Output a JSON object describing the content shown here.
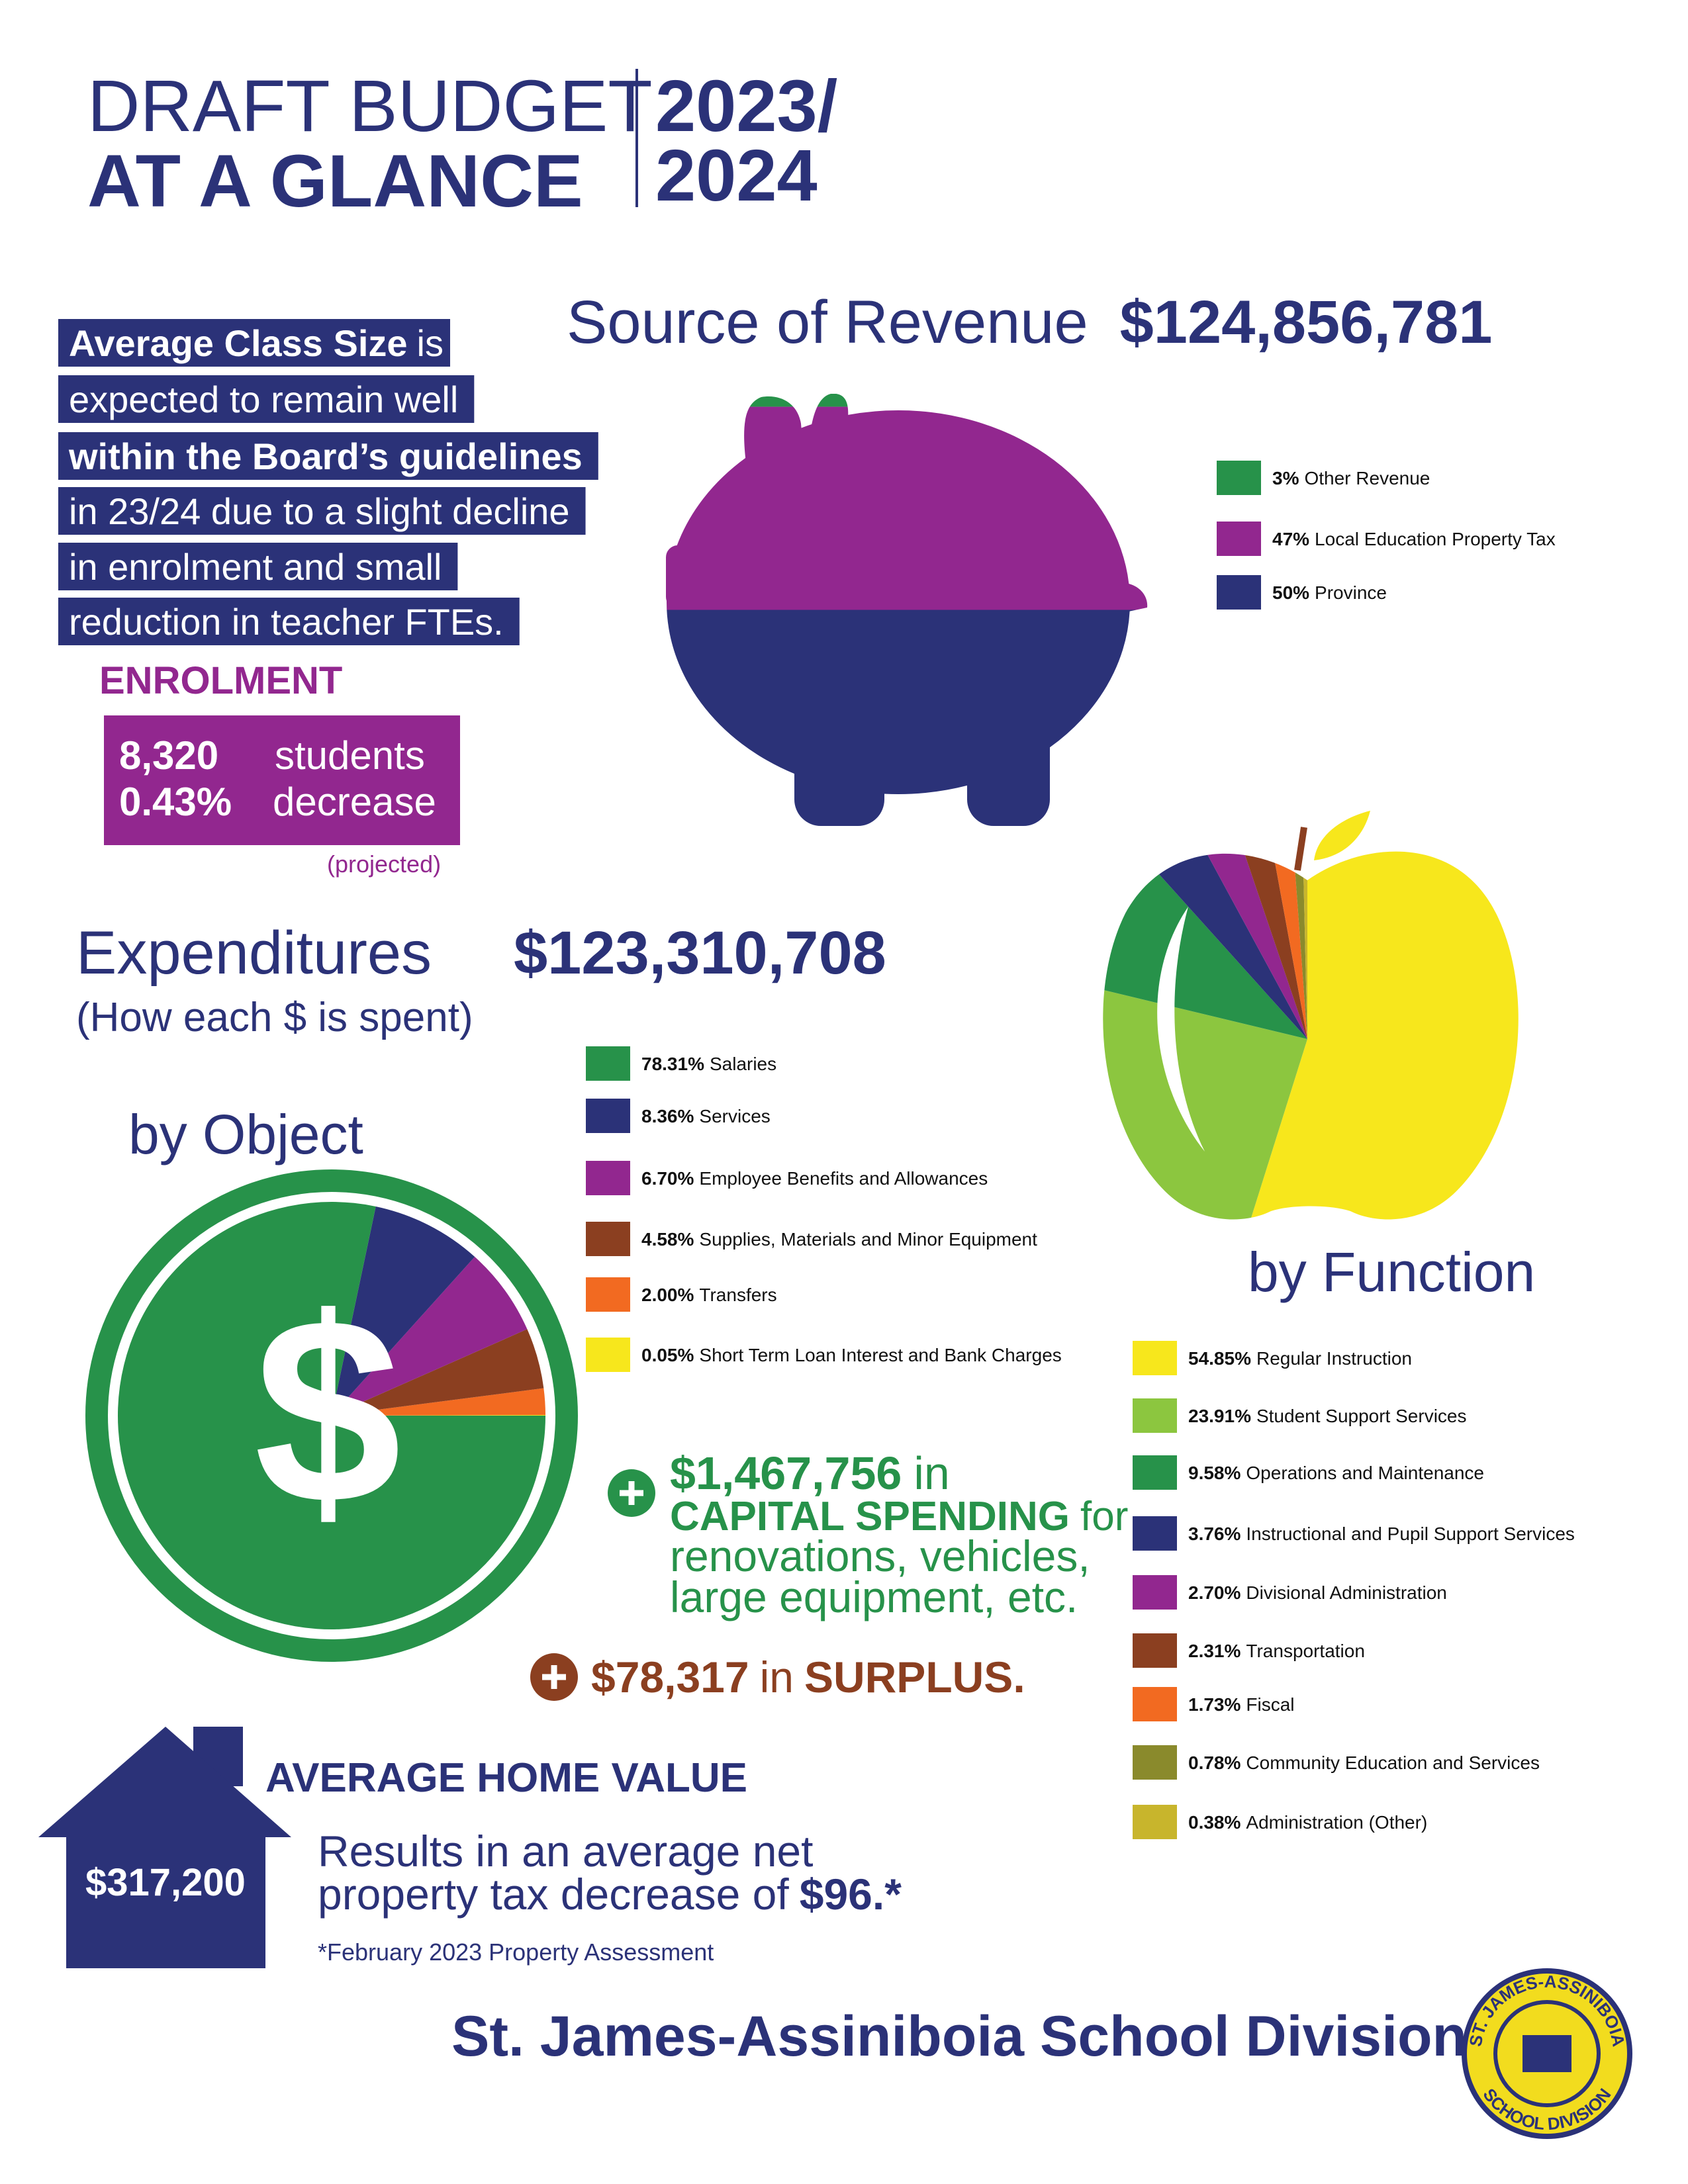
{
  "header": {
    "title_line1": "DRAFT BUDGET",
    "title_line2": "AT A GLANCE",
    "year_line1": "2023/",
    "year_line2": "2024"
  },
  "class_size": {
    "lines": [
      [
        "Average Class Size",
        "is"
      ],
      [
        "expected to remain well"
      ],
      [
        "within the Board’s guidelines"
      ],
      [
        "in 23/24 due to a slight decline"
      ],
      [
        "in enrolment and small"
      ],
      [
        "reduction in teacher FTEs."
      ]
    ]
  },
  "enrolment": {
    "title": "ENROLMENT",
    "rows": [
      [
        "8,320",
        "students"
      ],
      [
        "0.43%",
        "decrease"
      ]
    ],
    "note": "(projected)"
  },
  "expenditures": {
    "title": "Expenditures",
    "total": "$123,310,708",
    "subtitle": "(How each $ is spent)",
    "symbol": "$"
  },
  "capital_spending": {
    "amount": "$1,467,756",
    "word": "in",
    "label": "CAPITAL SPENDING",
    "word2": "for",
    "lines": [
      "renovations, vehicles,",
      "large equipment, etc."
    ]
  },
  "surplus": {
    "amount": "$78,317",
    "word": "in",
    "label": "SURPLUS."
  },
  "home": {
    "title": "AVERAGE HOME VALUE",
    "value": "$317,200",
    "lines": [
      "Results in an average net",
      "property tax decrease of"
    ],
    "amount": "$96.*",
    "note": "*February 2023 Property Assessment"
  },
  "footer": {
    "title": "St. James-Assiniboia School Division"
  },
  "logo": {
    "top": "ST. JAMES-ASSINIBOIA",
    "bottom": "SCHOOL DIVISION"
  },
  "chart_data": [
    {
      "type": "pie",
      "title": "Source of Revenue",
      "total": "$124,856,781",
      "categories": [
        "Other Revenue",
        "Local Education Property Tax",
        "Province"
      ],
      "values": [
        3,
        47,
        50
      ],
      "value_labels": [
        "3%",
        "47%",
        "50%"
      ],
      "colors": [
        "#27924a",
        "#92278f",
        "#2b3278"
      ]
    },
    {
      "type": "pie",
      "title": "by Object",
      "categories": [
        "Salaries",
        "Services",
        "Employee Benefits and Allowances",
        "Supplies, Materials and Minor Equipment",
        "Transfers",
        "Short Term Loan Interest and Bank Charges"
      ],
      "values": [
        78.31,
        8.36,
        6.7,
        4.58,
        2.0,
        0.05
      ],
      "value_labels": [
        "78.31%",
        "8.36%",
        "6.70%",
        "4.58%",
        "2.00%",
        "0.05%"
      ],
      "colors": [
        "#27924a",
        "#2b3278",
        "#92278f",
        "#8b3f20",
        "#f26a21",
        "#f7e71c"
      ]
    },
    {
      "type": "pie",
      "title": "by Function",
      "categories": [
        "Regular Instruction",
        "Student Support Services",
        "Operations and Maintenance",
        "Instructional and Pupil Support Services",
        "Divisional Administration",
        "Transportation",
        "Fiscal",
        "Community Education and Services",
        "Administration (Other)"
      ],
      "values": [
        54.85,
        23.91,
        9.58,
        3.76,
        2.7,
        2.31,
        1.73,
        0.78,
        0.38
      ],
      "value_labels": [
        "54.85%",
        "23.91%",
        "9.58%",
        "3.76%",
        "2.70%",
        "2.31%",
        "1.73%",
        "0.78%",
        "0.38%"
      ],
      "colors": [
        "#f7e71c",
        "#8cc63f",
        "#27924a",
        "#2b3278",
        "#92278f",
        "#8b3f20",
        "#f26a21",
        "#8a8a2c",
        "#c8b52c"
      ]
    }
  ]
}
